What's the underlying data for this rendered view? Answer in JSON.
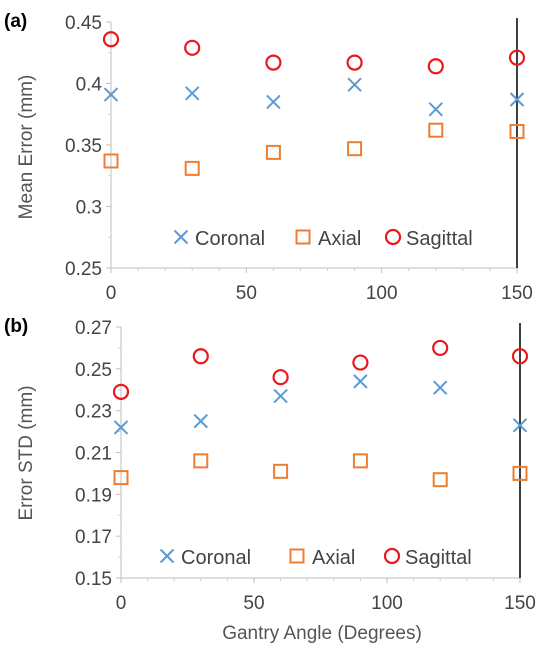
{
  "chart_data": [
    {
      "panel_label": "(a)",
      "type": "scatter",
      "xlabel": "",
      "ylabel": "Mean Error (mm)",
      "xlim": [
        0,
        150
      ],
      "ylim": [
        0.25,
        0.45
      ],
      "xticks": [
        "0",
        "50",
        "100",
        "150"
      ],
      "yticks": [
        "0.25",
        "0.3",
        "0.35",
        "0.4",
        "0.45"
      ],
      "legend_position": "bottom-inside",
      "series": [
        {
          "name": "Coronal",
          "marker": "x",
          "color": "#5B9BD5",
          "x": [
            0,
            30,
            60,
            90,
            120,
            150
          ],
          "y": [
            0.391,
            0.392,
            0.385,
            0.399,
            0.379,
            0.387
          ]
        },
        {
          "name": "Axial",
          "marker": "square",
          "color": "#ED7D31",
          "x": [
            0,
            30,
            60,
            90,
            120,
            150
          ],
          "y": [
            0.337,
            0.331,
            0.344,
            0.347,
            0.362,
            0.361
          ]
        },
        {
          "name": "Sagittal",
          "marker": "circle",
          "color": "#E8181C",
          "x": [
            0,
            30,
            60,
            90,
            120,
            150
          ],
          "y": [
            0.436,
            0.429,
            0.417,
            0.417,
            0.414,
            0.421
          ]
        }
      ]
    },
    {
      "panel_label": "(b)",
      "type": "scatter",
      "xlabel": "Gantry Angle (Degrees)",
      "ylabel": "Error STD (mm)",
      "xlim": [
        0,
        150
      ],
      "ylim": [
        0.15,
        0.27
      ],
      "xticks": [
        "0",
        "50",
        "100",
        "150"
      ],
      "yticks": [
        "0.15",
        "0.17",
        "0.19",
        "0.21",
        "0.23",
        "0.25",
        "0.27"
      ],
      "legend_position": "bottom-inside",
      "series": [
        {
          "name": "Coronal",
          "marker": "x",
          "color": "#5B9BD5",
          "x": [
            0,
            30,
            60,
            90,
            120,
            150
          ],
          "y": [
            0.222,
            0.225,
            0.237,
            0.244,
            0.241,
            0.223
          ]
        },
        {
          "name": "Axial",
          "marker": "square",
          "color": "#ED7D31",
          "x": [
            0,
            30,
            60,
            90,
            120,
            150
          ],
          "y": [
            0.198,
            0.206,
            0.201,
            0.206,
            0.197,
            0.2
          ]
        },
        {
          "name": "Sagittal",
          "marker": "circle",
          "color": "#E8181C",
          "x": [
            0,
            30,
            60,
            90,
            120,
            150
          ],
          "y": [
            0.239,
            0.256,
            0.246,
            0.253,
            0.26,
            0.256
          ]
        }
      ]
    }
  ]
}
